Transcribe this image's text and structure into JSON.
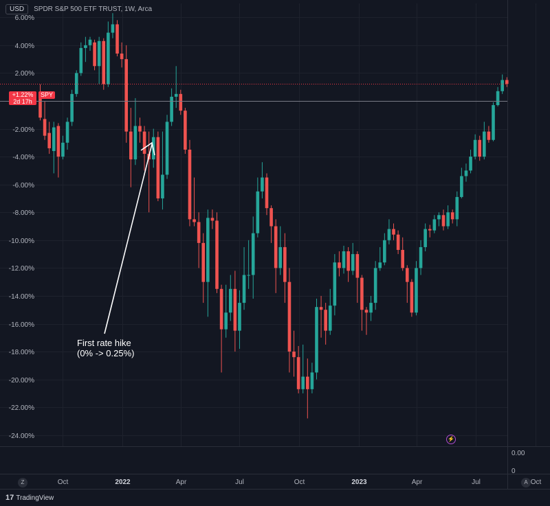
{
  "header": {
    "currency": "USD",
    "symbol_title": "SPDR S&P 500 ETF TRUST, 1W, Arca"
  },
  "price_badge": {
    "change": "+1.22%",
    "time_left": "2d 17h",
    "ticker": "SPY"
  },
  "annotation": {
    "line1": "First rate hike",
    "line2": "(0% -> 0.25%)"
  },
  "indicator_pane": {
    "value_top": "0.00",
    "value_bottom": "0"
  },
  "bottom_left_button": "Z",
  "bottom_right_button": "A",
  "footer": {
    "logo": "17",
    "brand": "TradingView"
  },
  "colors": {
    "up": "#26a69a",
    "down": "#ef5350",
    "background": "#131722",
    "badge": "#f23645"
  },
  "icons": [
    "lightning-bolt-icon",
    "tradingview-logo-icon"
  ],
  "chart_data": {
    "type": "candlestick",
    "title": "SPDR S&P 500 ETF TRUST, 1W, Arca",
    "y_unit": "percent change",
    "ylim": [
      -24.8,
      7
    ],
    "y_ticks": [
      "6.00%",
      "4.00%",
      "2.00%",
      "0.00%",
      "-2.00%",
      "-4.00%",
      "-6.00%",
      "-8.00%",
      "-10.00%",
      "-12.00%",
      "-14.00%",
      "-16.00%",
      "-18.00%",
      "-20.00%",
      "-22.00%",
      "-24.00%"
    ],
    "y_tick_values": [
      6,
      4,
      2,
      0,
      -2,
      -4,
      -6,
      -8,
      -10,
      -12,
      -14,
      -16,
      -18,
      -20,
      -22,
      -24
    ],
    "x_labels": [
      {
        "label": "Oct",
        "date": "2021-10-01",
        "bold": false
      },
      {
        "label": "2022",
        "date": "2022-01-01",
        "bold": true
      },
      {
        "label": "Apr",
        "date": "2022-04-01",
        "bold": false
      },
      {
        "label": "Jul",
        "date": "2022-07-01",
        "bold": false
      },
      {
        "label": "Oct",
        "date": "2022-10-01",
        "bold": false
      },
      {
        "label": "2023",
        "date": "2023-01-01",
        "bold": true
      },
      {
        "label": "Apr",
        "date": "2023-04-01",
        "bold": false
      },
      {
        "label": "Jul",
        "date": "2023-07-01",
        "bold": false
      },
      {
        "label": "Oct",
        "date": "2023-10-01",
        "bold": false
      }
    ],
    "last_value": 1.22,
    "candles": [
      [
        0.5,
        -1.2,
        1.2,
        -1.4
      ],
      [
        -1.3,
        -2.5,
        0.0,
        -2.8
      ],
      [
        -2.3,
        -3.4,
        -1.5,
        -3.8
      ],
      [
        -3.6,
        -1.9,
        -1.5,
        -5.2
      ],
      [
        -1.8,
        -4.0,
        -1.6,
        -5.5
      ],
      [
        -4.0,
        -3.0,
        -2.5,
        -4.2
      ],
      [
        -3.0,
        -1.5,
        -1.2,
        -3.5
      ],
      [
        -1.5,
        0.5,
        0.8,
        -1.8
      ],
      [
        0.5,
        2.0,
        2.2,
        0.3
      ],
      [
        2.0,
        3.8,
        4.2,
        1.8
      ],
      [
        3.8,
        4.0,
        4.6,
        2.8
      ],
      [
        4.0,
        4.4,
        4.6,
        3.6
      ],
      [
        4.2,
        2.5,
        4.4,
        2.2
      ],
      [
        2.5,
        4.3,
        4.6,
        1.2
      ],
      [
        4.3,
        1.2,
        4.5,
        0.8
      ],
      [
        1.2,
        4.9,
        5.7,
        1.0
      ],
      [
        4.9,
        5.5,
        6.3,
        4.5
      ],
      [
        5.5,
        3.4,
        5.8,
        3.2
      ],
      [
        3.4,
        3.0,
        4.2,
        2.4
      ],
      [
        3.0,
        -2.2,
        4.0,
        -3.0
      ],
      [
        -2.2,
        -4.2,
        -0.5,
        -6.2
      ],
      [
        -4.2,
        -1.8,
        0.2,
        -4.6
      ],
      [
        -1.8,
        -2.2,
        -1.2,
        -3.0
      ],
      [
        -2.2,
        -3.8,
        -1.8,
        -5.0
      ],
      [
        -3.8,
        -4.2,
        -2.2,
        -8.0
      ],
      [
        -4.2,
        -2.6,
        -2.0,
        -4.8
      ],
      [
        -2.6,
        -7.0,
        -2.2,
        -7.2
      ],
      [
        -7.0,
        -5.3,
        -2.2,
        -7.8
      ],
      [
        -5.3,
        -1.5,
        -1.0,
        -5.6
      ],
      [
        -1.5,
        0.3,
        0.9,
        -1.8
      ],
      [
        0.3,
        0.5,
        2.5,
        -0.5
      ],
      [
        0.5,
        -0.7,
        0.8,
        -1.0
      ],
      [
        -0.7,
        -3.5,
        -0.5,
        -3.8
      ],
      [
        -3.5,
        -8.5,
        -2.8,
        -9.0
      ],
      [
        -8.5,
        -8.7,
        -5.5,
        -9.0
      ],
      [
        -8.7,
        -10.2,
        -8.0,
        -12.0
      ],
      [
        -10.2,
        -13.0,
        -9.5,
        -14.5
      ],
      [
        -13.0,
        -8.4,
        -7.8,
        -15.5
      ],
      [
        -8.4,
        -8.6,
        -7.8,
        -9.2
      ],
      [
        -8.6,
        -13.5,
        -8.0,
        -13.8
      ],
      [
        -13.5,
        -16.4,
        -13.2,
        -19.5
      ],
      [
        -16.4,
        -15.2,
        -13.2,
        -17.0
      ],
      [
        -15.2,
        -13.5,
        -12.5,
        -15.8
      ],
      [
        -13.5,
        -16.5,
        -12.2,
        -18.0
      ],
      [
        -16.5,
        -14.5,
        -13.6,
        -17.8
      ],
      [
        -14.5,
        -12.5,
        -10.5,
        -15.0
      ],
      [
        -12.5,
        -12.5,
        -10.0,
        -13.5
      ],
      [
        -12.5,
        -9.5,
        -8.3,
        -14.2
      ],
      [
        -9.5,
        -6.5,
        -5.5,
        -9.8
      ],
      [
        -6.5,
        -5.5,
        -4.4,
        -7.0
      ],
      [
        -5.5,
        -7.7,
        -5.2,
        -8.2
      ],
      [
        -7.7,
        -9.0,
        -7.5,
        -10.2
      ],
      [
        -9.0,
        -12.0,
        -8.5,
        -13.8
      ],
      [
        -12.0,
        -10.5,
        -9.0,
        -12.5
      ],
      [
        -10.5,
        -13.0,
        -9.5,
        -14.5
      ],
      [
        -13.0,
        -18.0,
        -12.0,
        -19.5
      ],
      [
        -18.0,
        -18.4,
        -16.5,
        -19.8
      ],
      [
        -18.4,
        -20.7,
        -17.6,
        -21.0
      ],
      [
        -20.7,
        -19.8,
        -17.5,
        -21.0
      ],
      [
        -19.8,
        -20.7,
        -18.5,
        -22.8
      ],
      [
        -20.7,
        -19.5,
        -18.8,
        -21.0
      ],
      [
        -19.5,
        -14.8,
        -14.2,
        -20.0
      ],
      [
        -14.8,
        -15.0,
        -14.0,
        -17.0
      ],
      [
        -15.0,
        -16.5,
        -14.5,
        -17.5
      ],
      [
        -16.5,
        -14.7,
        -13.5,
        -16.8
      ],
      [
        -14.7,
        -11.6,
        -11.0,
        -15.4
      ],
      [
        -11.6,
        -12.0,
        -10.8,
        -12.6
      ],
      [
        -12.0,
        -10.8,
        -10.4,
        -12.4
      ],
      [
        -10.8,
        -12.2,
        -10.5,
        -13.0
      ],
      [
        -12.2,
        -11.0,
        -10.2,
        -12.5
      ],
      [
        -11.0,
        -12.7,
        -10.8,
        -14.5
      ],
      [
        -12.7,
        -15.0,
        -12.5,
        -16.5
      ],
      [
        -15.0,
        -15.2,
        -14.8,
        -16.8
      ],
      [
        -15.2,
        -14.5,
        -14.0,
        -15.8
      ],
      [
        -14.5,
        -12.0,
        -11.5,
        -15.0
      ],
      [
        -12.0,
        -11.6,
        -10.5,
        -12.2
      ],
      [
        -11.6,
        -10.0,
        -9.5,
        -11.8
      ],
      [
        -10.0,
        -9.2,
        -8.5,
        -10.3
      ],
      [
        -9.2,
        -9.6,
        -8.8,
        -10.0
      ],
      [
        -9.6,
        -10.7,
        -9.3,
        -11.0
      ],
      [
        -10.7,
        -12.0,
        -9.8,
        -12.2
      ],
      [
        -12.0,
        -13.0,
        -11.8,
        -14.5
      ],
      [
        -13.0,
        -15.2,
        -12.8,
        -15.5
      ],
      [
        -15.2,
        -12.0,
        -11.5,
        -15.4
      ],
      [
        -12.0,
        -10.5,
        -10.0,
        -12.5
      ],
      [
        -10.5,
        -9.2,
        -8.8,
        -10.8
      ],
      [
        -9.2,
        -9.3,
        -8.9,
        -9.8
      ],
      [
        -9.3,
        -8.5,
        -8.2,
        -9.5
      ],
      [
        -8.5,
        -8.2,
        -8.0,
        -9.0
      ],
      [
        -8.2,
        -9.0,
        -7.8,
        -9.3
      ],
      [
        -9.0,
        -8.0,
        -7.5,
        -9.2
      ],
      [
        -8.0,
        -8.5,
        -7.8,
        -8.8
      ],
      [
        -8.5,
        -6.9,
        -6.5,
        -9.0
      ],
      [
        -6.9,
        -5.4,
        -4.8,
        -7.0
      ],
      [
        -5.4,
        -5.0,
        -4.5,
        -5.8
      ],
      [
        -5.0,
        -4.0,
        -3.5,
        -5.2
      ],
      [
        -4.0,
        -2.8,
        -2.4,
        -4.2
      ],
      [
        -2.8,
        -4.0,
        -2.5,
        -4.3
      ],
      [
        -4.0,
        -2.2,
        -1.5,
        -4.2
      ],
      [
        -2.2,
        -2.8,
        -1.8,
        -3.0
      ],
      [
        -2.8,
        -0.3,
        -0.1,
        -2.9
      ],
      [
        -0.3,
        0.7,
        1.0,
        -0.4
      ],
      [
        0.7,
        1.5,
        1.9,
        0.5
      ],
      [
        1.5,
        1.22,
        1.7,
        1.0
      ]
    ]
  }
}
